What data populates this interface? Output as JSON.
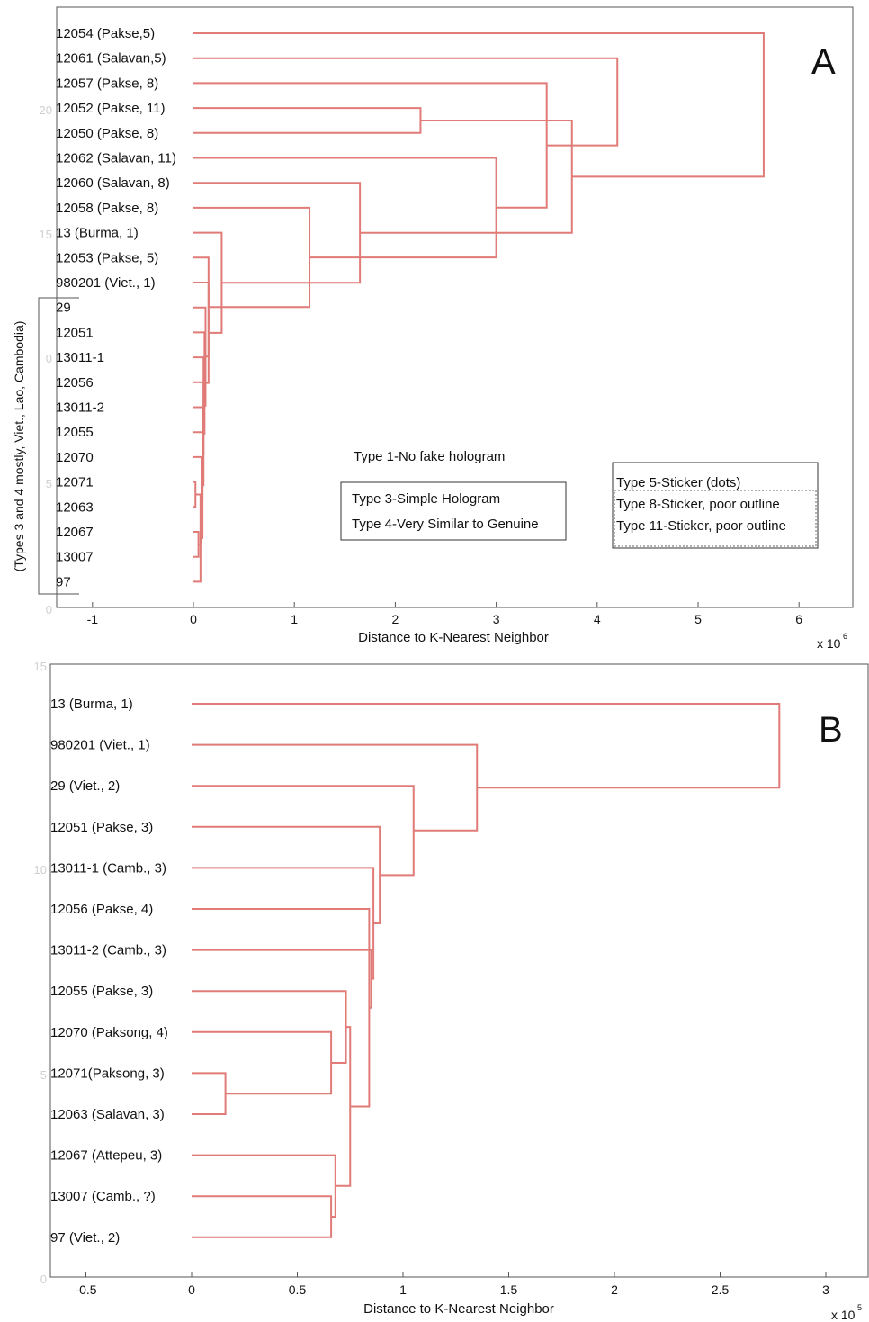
{
  "colors": {
    "link": "#e07b78",
    "axis": "#555555",
    "text": "#111111",
    "faint": "#d0d0d0"
  },
  "chart_data": [
    {
      "type": "dendrogram",
      "panel_label": "A",
      "xlabel": "Distance to K-Nearest Neighbor",
      "x_multiplier": "x 10",
      "x_exponent": "6",
      "xlim": [
        -1.3,
        6.5
      ],
      "x_ticks": [
        "-1",
        "0",
        "1",
        "2",
        "3",
        "4",
        "5",
        "6"
      ],
      "x_tick_values": [
        -1,
        0,
        1,
        2,
        3,
        4,
        5,
        6
      ],
      "faint_y_ticks": [
        "20",
        "15",
        "0",
        "5",
        "0"
      ],
      "grid": false,
      "leaves": [
        "12054 (Pakse,5)",
        "12061  (Salavan,5)",
        "12057  (Pakse, 8)",
        "12052  (Pakse, 11)",
        "12050  (Pakse, 8)",
        "12062  (Salavan, 11)",
        "12060  (Salavan, 8)",
        "12058  (Pakse, 8)",
        "13     (Burma, 1)",
        "12053  (Pakse, 5)",
        "980201 (Viet., 1)",
        "29",
        "12051",
        "13011-1",
        "12056",
        "13011-2",
        "12055",
        "12070",
        "12071",
        "12063",
        "12067",
        "13007",
        "97"
      ],
      "bracket_label": "(Types 3 and 4 mostly, Viet., Lao, Cambodia)",
      "annotations": {
        "type1": "Type 1-No fake hologram",
        "box1": [
          "Type 3-Simple Hologram",
          "Type 4-Very Similar to Genuine"
        ],
        "box2": [
          "Type 5-Sticker (dots)",
          "Type 8-Sticker, poor outline",
          "Type 11-Sticker, poor outline"
        ]
      },
      "merges": [
        {
          "a": 18,
          "b": 19,
          "h": 0.02
        },
        {
          "a": 20,
          "b": 21,
          "h": 0.05
        },
        {
          "a": 23,
          "b": 22,
          "h": 0.07
        },
        {
          "a": 24,
          "b": 17,
          "h": 0.08
        },
        {
          "a": 25,
          "b": 16,
          "h": 0.09
        },
        {
          "a": 26,
          "b": 15,
          "h": 0.09
        },
        {
          "a": 27,
          "b": 14,
          "h": 0.1
        },
        {
          "a": 28,
          "b": 13,
          "h": 0.1
        },
        {
          "a": 29,
          "b": 12,
          "h": 0.11
        },
        {
          "a": 30,
          "b": 11,
          "h": 0.12
        },
        {
          "a": 31,
          "b": 10,
          "h": 0.15
        },
        {
          "a": 32,
          "b": 9,
          "h": 0.15
        },
        {
          "a": 33,
          "b": 8,
          "h": 0.28
        },
        {
          "a": 34,
          "b": 7,
          "h": 1.15
        },
        {
          "a": 35,
          "b": 6,
          "h": 1.65
        },
        {
          "a": 36,
          "b": 5,
          "h": 3.0
        },
        {
          "a": 3,
          "b": 4,
          "h": 2.25
        },
        {
          "a": 2,
          "b": 38,
          "h": 3.5
        },
        {
          "a": 37,
          "b": 39,
          "h": 3.75
        },
        {
          "a": 1,
          "b": 40,
          "h": 4.2
        },
        {
          "a": 0,
          "b": 41,
          "h": 5.65
        }
      ]
    },
    {
      "type": "dendrogram",
      "panel_label": "B",
      "xlabel": "Distance to K-Nearest Neighbor",
      "x_multiplier": "x 10",
      "x_exponent": "5",
      "xlim": [
        -0.66,
        3.2
      ],
      "x_ticks": [
        "-0.5",
        "0",
        "0.5",
        "1",
        "1.5",
        "2",
        "2.5",
        "3"
      ],
      "x_tick_values": [
        -0.5,
        0,
        0.5,
        1,
        1.5,
        2,
        2.5,
        3
      ],
      "faint_y_ticks": [
        "15",
        "10",
        "5",
        "0"
      ],
      "grid": false,
      "leaves": [
        "13 (Burma, 1)",
        "980201 (Viet., 1)",
        "29 (Viet., 2)",
        "12051 (Pakse, 3)",
        "13011-1 (Camb., 3)",
        "12056 (Pakse, 4)",
        "13011-2 (Camb., 3)",
        "12055 (Pakse, 3)",
        "12070 (Paksong, 4)",
        "12071(Paksong, 3)",
        "12063 (Salavan, 3)",
        "12067 (Attepeu, 3)",
        "13007 (Camb., ?)",
        "97 (Viet., 2)"
      ],
      "merges": [
        {
          "a": 9,
          "b": 10,
          "h": 0.16
        },
        {
          "a": 8,
          "b": 14,
          "h": 0.66
        },
        {
          "a": 12,
          "b": 13,
          "h": 0.66
        },
        {
          "a": 11,
          "b": 16,
          "h": 0.68
        },
        {
          "a": 7,
          "b": 15,
          "h": 0.73
        },
        {
          "a": 18,
          "b": 17,
          "h": 0.75
        },
        {
          "a": 5,
          "b": 19,
          "h": 0.84
        },
        {
          "a": 6,
          "b": 20,
          "h": 0.85
        },
        {
          "a": 4,
          "b": 21,
          "h": 0.86
        },
        {
          "a": 3,
          "b": 22,
          "h": 0.89
        },
        {
          "a": 2,
          "b": 23,
          "h": 1.05
        },
        {
          "a": 1,
          "b": 24,
          "h": 1.35
        },
        {
          "a": 0,
          "b": 25,
          "h": 2.78
        }
      ]
    }
  ]
}
